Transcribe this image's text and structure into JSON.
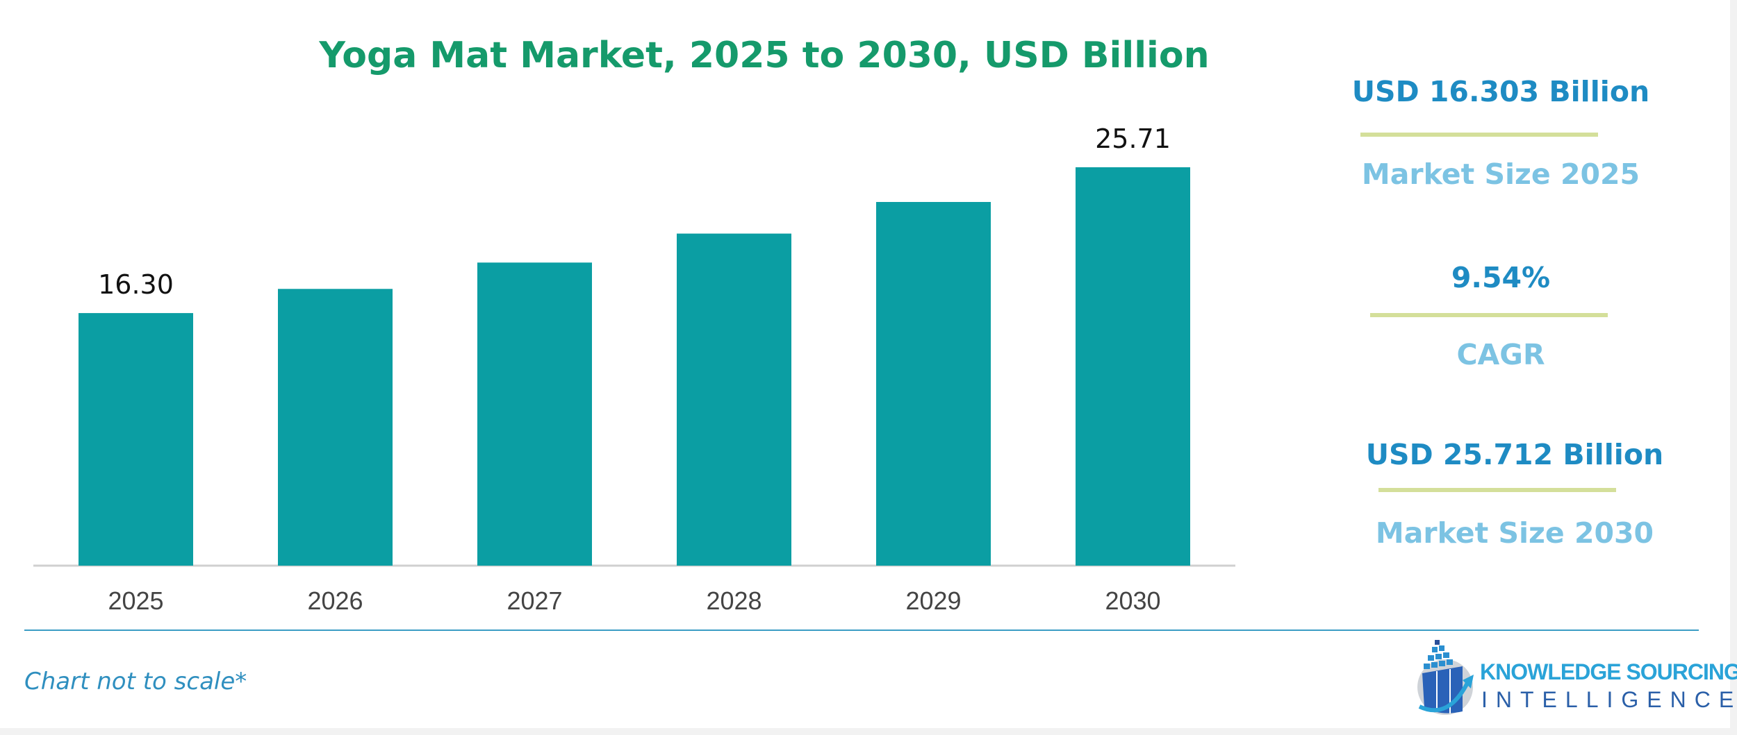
{
  "chart_data": {
    "type": "bar",
    "title": "Yoga Mat Market, 2025 to 2030, USD Billion",
    "categories": [
      "2025",
      "2026",
      "2027",
      "2028",
      "2029",
      "2030"
    ],
    "values": [
      16.3,
      17.86,
      19.56,
      21.43,
      23.47,
      25.71
    ],
    "data_labels": [
      "16.30",
      null,
      null,
      null,
      null,
      "25.71"
    ],
    "xlabel": "",
    "ylabel": "",
    "ylim": [
      0,
      25.71
    ],
    "grid": false,
    "bar_color": "#0b9ea3"
  },
  "kpis": [
    {
      "value": "USD 16.303 Billion",
      "label": "Market Size 2025"
    },
    {
      "value": "9.54%",
      "label": "CAGR"
    },
    {
      "value": "USD 25.712 Billion",
      "label": "Market Size 2030"
    }
  ],
  "footnote": "Chart not to scale*",
  "logo": {
    "line1": "KNOWLEDGE SOURCING",
    "line2": "INTELLIGENCE"
  },
  "colors": {
    "title": "#159a6b",
    "kpi_value": "#1e8bc3",
    "kpi_label": "#7cc3e3",
    "separator": "#d4df9a"
  }
}
